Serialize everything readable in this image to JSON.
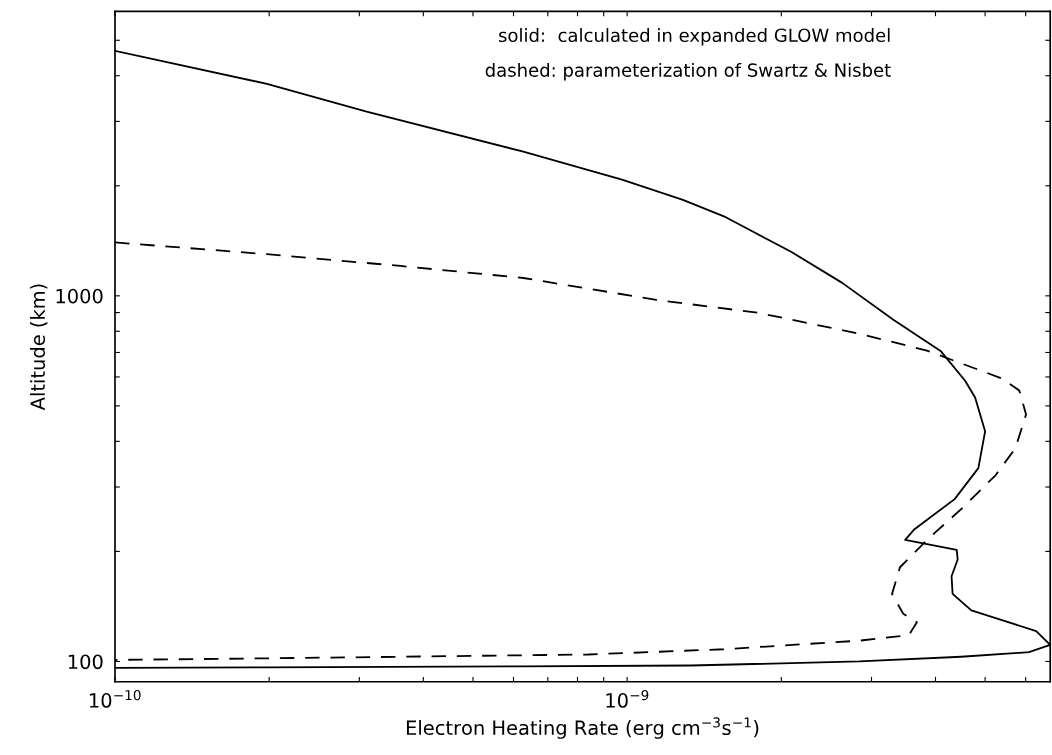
{
  "chart_data": {
    "type": "line",
    "xlabel": "Electron Heating Rate (erg cm$^{−3}$s$^{−1}$)",
    "ylabel": "Altitude (km)",
    "annotations": [
      "solid:  calculated in expanded GLOW model",
      "dashed: parameterization of Swartz & Nisbet"
    ],
    "log": "xy",
    "grid": false,
    "xlim": [
      1e-10,
      6.7e-09
    ],
    "ylim": [
      88,
      6000
    ],
    "xticks": [
      {
        "value": 1e-10,
        "label": "10$^{−10}$"
      },
      {
        "value": 2e-10,
        "label": null
      },
      {
        "value": 3e-10,
        "label": null
      },
      {
        "value": 4e-10,
        "label": null
      },
      {
        "value": 5e-10,
        "label": null
      },
      {
        "value": 6e-10,
        "label": null
      },
      {
        "value": 7e-10,
        "label": null
      },
      {
        "value": 8e-10,
        "label": null
      },
      {
        "value": 9e-10,
        "label": null
      },
      {
        "value": 1e-09,
        "label": "10$^{−9}$"
      },
      {
        "value": 2e-09,
        "label": null
      },
      {
        "value": 3e-09,
        "label": null
      },
      {
        "value": 4e-09,
        "label": null
      },
      {
        "value": 5e-09,
        "label": null
      },
      {
        "value": 6e-09,
        "label": null
      }
    ],
    "yticks": [
      100,
      {
        "value": 200,
        "label": null
      },
      {
        "value": 300,
        "label": null
      },
      {
        "value": 400,
        "label": null
      },
      {
        "value": 500,
        "label": null
      },
      {
        "value": 600,
        "label": null
      },
      {
        "value": 700,
        "label": null
      },
      {
        "value": 800,
        "label": null
      },
      {
        "value": 900,
        "label": null
      },
      1000,
      {
        "value": 2000,
        "label": null
      },
      {
        "value": 3000,
        "label": null
      },
      {
        "value": 4000,
        "label": null
      },
      {
        "value": 5000,
        "label": null
      }
    ],
    "series": [
      {
        "color": "#000000",
        "line_style": "solid",
        "x": [
          1e-10,
          1.98e-10,
          3.1e-10,
          6.27e-10,
          9.77e-10,
          1.285e-09,
          1.545e-09,
          2.09e-09,
          2.63e-09,
          3.31e-09,
          4.1e-09,
          4.57e-09,
          4.78e-09,
          5e-09,
          4.85e-09,
          4.36e-09,
          3.64e-09,
          3.49e-09,
          4.4e-09,
          4.42e-09,
          4.3e-09,
          4.32e-09,
          4.7e-09,
          5.47e-09,
          6.29e-09,
          6.7e-09,
          6.09e-09,
          4.49e-09,
          2.84e-09,
          1.33e-09,
          6.27e-10,
          1.98e-10,
          1e-10
        ],
        "values": [
          4680,
          3800,
          3190,
          2480,
          2080,
          1830,
          1650,
          1320,
          1085,
          860,
          705,
          586,
          527,
          426,
          338,
          278,
          230,
          215,
          202,
          190,
          171,
          153,
          138,
          129,
          121,
          111,
          106,
          103,
          100,
          97.5,
          97,
          96.4,
          96
        ]
      },
      {
        "color": "#000000",
        "line_style": "dashed",
        "x": [
          1e-10,
          1.98e-10,
          3.61e-10,
          6.27e-10,
          1.14e-09,
          1.8e-09,
          2.84e-09,
          3.85e-09,
          5.4e-09,
          5.83e-09,
          6.01e-09,
          5.73e-09,
          5.24e-09,
          4.49e-09,
          3.85e-09,
          3.41e-09,
          3.29e-09,
          3.46e-09,
          3.68e-09,
          3.55e-09,
          2.84e-09,
          1.545e-09,
          8.4e-10,
          2e-10,
          1e-10
        ],
        "values": [
          1400,
          1300,
          1207,
          1119,
          975,
          899,
          788,
          708,
          594,
          551,
          474,
          383,
          323,
          261,
          215,
          181,
          153,
          135,
          128,
          118,
          114,
          108,
          104.5,
          102,
          101
        ]
      }
    ]
  }
}
